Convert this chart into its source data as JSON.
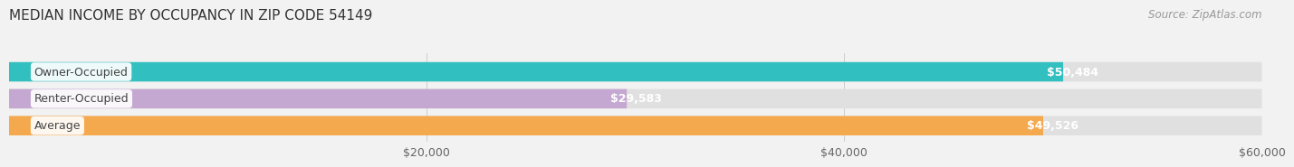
{
  "title": "MEDIAN INCOME BY OCCUPANCY IN ZIP CODE 54149",
  "source": "Source: ZipAtlas.com",
  "categories": [
    "Owner-Occupied",
    "Renter-Occupied",
    "Average"
  ],
  "values": [
    50484,
    29583,
    49526
  ],
  "bar_colors": [
    "#32bfbf",
    "#c4a8d2",
    "#f5a94e"
  ],
  "bar_labels": [
    "$50,484",
    "$29,583",
    "$49,526"
  ],
  "xlim": [
    0,
    60000
  ],
  "xticks": [
    20000,
    40000,
    60000
  ],
  "xtick_labels": [
    "$20,000",
    "$40,000",
    "$60,000"
  ],
  "background_color": "#f2f2f2",
  "bar_bg_color": "#e0e0e0",
  "title_fontsize": 11,
  "source_fontsize": 8.5,
  "label_fontsize": 9,
  "tick_fontsize": 9,
  "cat_fontsize": 9
}
